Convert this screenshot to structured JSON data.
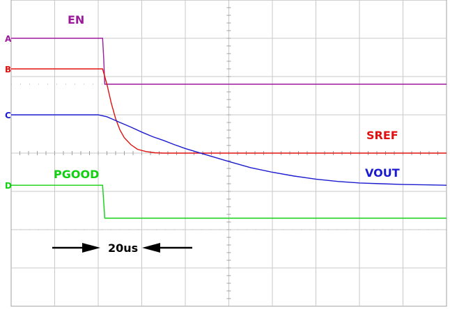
{
  "chart_data": {
    "type": "line",
    "title": "",
    "xlabel": "",
    "ylabel": "",
    "grid": true,
    "grid_divisions": {
      "x": 10,
      "y": 8
    },
    "time_scale_label": "20us",
    "xlim": [
      0,
      200
    ],
    "ylim": [
      -4,
      4
    ],
    "series": [
      {
        "name": "EN",
        "marker": "A",
        "color": "#9b1a9b",
        "x": [
          0,
          42,
          42.5,
          43,
          200
        ],
        "y": [
          3.0,
          3.0,
          2.5,
          1.8,
          1.8
        ]
      },
      {
        "name": "SREF",
        "marker": "B",
        "color": "#e01010",
        "x": [
          0,
          42,
          44,
          46,
          48,
          50,
          52,
          55,
          58,
          62,
          66,
          70,
          200
        ],
        "y": [
          2.2,
          2.2,
          1.8,
          1.3,
          0.9,
          0.6,
          0.4,
          0.22,
          0.1,
          0.04,
          0.01,
          0.0,
          0.0
        ]
      },
      {
        "name": "VOUT",
        "marker": "C",
        "color": "#1a1ad0",
        "x": [
          0,
          40,
          44,
          46,
          50,
          55,
          60,
          65,
          70,
          75,
          80,
          90,
          100,
          110,
          120,
          130,
          140,
          150,
          160,
          170,
          180,
          190,
          200
        ],
        "y": [
          1.0,
          1.0,
          0.95,
          0.9,
          0.8,
          0.68,
          0.55,
          0.43,
          0.33,
          0.22,
          0.12,
          -0.05,
          -0.22,
          -0.38,
          -0.5,
          -0.6,
          -0.68,
          -0.74,
          -0.78,
          -0.8,
          -0.82,
          -0.83,
          -0.84
        ]
      },
      {
        "name": "PGOOD",
        "marker": "D",
        "color": "#10d010",
        "x": [
          0,
          42,
          43,
          200
        ],
        "y": [
          -0.84,
          -0.84,
          -1.7,
          -1.7
        ]
      }
    ]
  }
}
